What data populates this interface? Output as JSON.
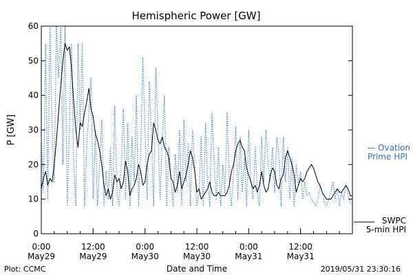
{
  "chart_data": {
    "type": "line",
    "title": "Hemispheric Power [GW]",
    "xlabel": "Date and Time",
    "ylabel": "P [GW]",
    "ylim": [
      0,
      60
    ],
    "yticks": [
      0,
      10,
      20,
      30,
      40,
      50,
      60
    ],
    "xlim_hours": [
      0,
      72
    ],
    "xticks": [
      {
        "hour": 0,
        "time": "0:00",
        "date": "May29"
      },
      {
        "hour": 12,
        "time": "12:00",
        "date": "May29"
      },
      {
        "hour": 24,
        "time": "0:00",
        "date": "May30"
      },
      {
        "hour": 36,
        "time": "12:00",
        "date": "May30"
      },
      {
        "hour": 48,
        "time": "0:00",
        "date": "May31"
      },
      {
        "hour": 60,
        "time": "12:00",
        "date": "May31"
      }
    ],
    "grid": false,
    "legend_placement": "right",
    "series": [
      {
        "name": "SWPC 5-min HPI",
        "legend_lines": [
          "SWPC",
          "5-min HPI"
        ],
        "color": "#000000",
        "style": "solid",
        "x": [
          0,
          0.5,
          1,
          1.5,
          2,
          2.5,
          3,
          3.5,
          4,
          4.5,
          5,
          5.5,
          6,
          6.5,
          7,
          7.5,
          8,
          8.5,
          9,
          9.5,
          10,
          10.5,
          11,
          11.5,
          12,
          12.5,
          13,
          13.5,
          14,
          14.5,
          15,
          15.5,
          16,
          16.5,
          17,
          17.5,
          18,
          18.5,
          19,
          19.5,
          20,
          20.5,
          21,
          21.5,
          22,
          22.5,
          23,
          23.5,
          24,
          24.5,
          25,
          25.5,
          26,
          26.5,
          27,
          27.5,
          28,
          28.5,
          29,
          29.5,
          30,
          30.5,
          31,
          31.5,
          32,
          32.5,
          33,
          33.5,
          34,
          34.5,
          35,
          35.5,
          36,
          36.5,
          37,
          37.5,
          38,
          38.5,
          39,
          39.5,
          40,
          40.5,
          41,
          41.5,
          42,
          42.5,
          43,
          43.5,
          44,
          44.5,
          45,
          45.5,
          46,
          46.5,
          47,
          47.5,
          48,
          48.5,
          49,
          49.5,
          50,
          50.5,
          51,
          51.5,
          52,
          52.5,
          53,
          53.5,
          54,
          54.5,
          55,
          55.5,
          56,
          56.5,
          57,
          57.5,
          58,
          58.5,
          59,
          59.5,
          60,
          60.5,
          61,
          61.5,
          62,
          62.5,
          63,
          63.5,
          64,
          64.5,
          65,
          65.5,
          66,
          66.5,
          67,
          67.5,
          68,
          68.5,
          69,
          69.5,
          70,
          70.5,
          71,
          71.5,
          72
        ],
        "values": [
          13,
          16,
          18,
          14,
          16,
          15,
          20,
          27,
          35,
          43,
          50,
          55,
          53,
          54,
          48,
          38,
          30,
          25,
          32,
          31,
          35,
          38,
          42,
          36,
          34,
          29,
          27,
          24,
          20,
          14,
          11,
          13,
          10,
          12,
          17,
          15,
          16,
          13,
          15,
          21,
          18,
          11,
          13,
          14,
          16,
          20,
          18,
          14,
          15,
          20,
          23,
          24,
          32,
          30,
          27,
          26,
          28,
          25,
          24,
          22,
          16,
          15,
          12,
          14,
          18,
          13,
          15,
          17,
          20,
          24,
          22,
          18,
          12,
          13,
          10,
          11,
          12,
          13,
          15,
          12,
          11,
          11,
          12,
          11,
          11,
          11,
          12,
          14,
          18,
          20,
          24,
          26,
          27,
          25,
          24,
          19,
          17,
          15,
          13,
          14,
          12,
          14,
          18,
          14,
          12,
          13,
          17,
          19,
          18,
          14,
          13,
          16,
          17,
          22,
          24,
          22,
          20,
          17,
          12,
          14,
          16,
          15,
          16,
          18,
          19,
          20,
          19,
          17,
          15,
          14,
          12,
          11,
          10,
          10,
          10,
          11,
          12,
          13,
          12,
          12,
          13,
          14,
          13,
          11,
          11
        ]
      },
      {
        "name": "Ovation Prime HPI",
        "legend_lines": [
          "— Ovation",
          "Prime HPI"
        ],
        "color": "#2e6fd0",
        "style": "dotted",
        "x": [
          0,
          0.5,
          1,
          1.5,
          2,
          2.5,
          3,
          3.5,
          4,
          4.5,
          5,
          5.5,
          6,
          6.5,
          7,
          7.5,
          8,
          8.5,
          9,
          9.5,
          10,
          10.5,
          11,
          11.5,
          12,
          12.5,
          13,
          13.5,
          14,
          14.5,
          15,
          15.5,
          16,
          16.5,
          17,
          17.5,
          18,
          18.5,
          19,
          19.5,
          20,
          20.5,
          21,
          21.5,
          22,
          22.5,
          23,
          23.5,
          24,
          24.5,
          25,
          25.5,
          26,
          26.5,
          27,
          27.5,
          28,
          28.5,
          29,
          29.5,
          30,
          30.5,
          31,
          31.5,
          32,
          32.5,
          33,
          33.5,
          34,
          34.5,
          35,
          35.5,
          36,
          36.5,
          37,
          37.5,
          38,
          38.5,
          39,
          39.5,
          40,
          40.5,
          41,
          41.5,
          42,
          42.5,
          43,
          43.5,
          44,
          44.5,
          45,
          45.5,
          46,
          46.5,
          47,
          47.5,
          48,
          48.5,
          49,
          49.5,
          50,
          50.5,
          51,
          51.5,
          52,
          52.5,
          53,
          53.5,
          54,
          54.5,
          55,
          55.5,
          56,
          56.5,
          57,
          57.5,
          58,
          58.5,
          59,
          59.5,
          60,
          60.5,
          61,
          61.5,
          62,
          62.5,
          63,
          63.5,
          64,
          64.5,
          65,
          65.5,
          66,
          66.5,
          67,
          67.5,
          68,
          68.5,
          69,
          69.5,
          70,
          70.5,
          71,
          71.5,
          72
        ],
        "values": [
          28,
          12,
          55,
          10,
          60,
          30,
          15,
          60,
          45,
          60,
          20,
          60,
          8,
          30,
          55,
          20,
          8,
          55,
          30,
          55,
          8,
          25,
          35,
          45,
          10,
          30,
          8,
          20,
          33,
          8,
          18,
          10,
          25,
          8,
          37,
          12,
          8,
          20,
          36,
          10,
          32,
          8,
          28,
          15,
          40,
          8,
          23,
          51,
          30,
          10,
          44,
          28,
          8,
          48,
          30,
          10,
          28,
          40,
          8,
          25,
          17,
          8,
          23,
          12,
          30,
          8,
          33,
          15,
          26,
          8,
          30,
          20,
          8,
          12,
          28,
          8,
          32,
          15,
          8,
          35,
          20,
          10,
          25,
          8,
          20,
          12,
          35,
          15,
          8,
          18,
          31,
          10,
          28,
          12,
          22,
          8,
          30,
          15,
          10,
          25,
          12,
          8,
          28,
          15,
          30,
          20,
          15,
          25,
          12,
          28,
          22,
          8,
          28,
          15,
          25,
          10,
          22,
          8,
          20,
          14,
          18,
          10,
          15,
          11,
          12,
          10,
          9,
          8,
          10,
          14,
          12,
          9,
          8,
          10,
          12,
          15,
          10,
          13,
          8,
          12,
          10,
          14,
          11,
          9,
          8
        ]
      }
    ]
  },
  "footer": {
    "left": "Plot: CCMC",
    "right": "2019/05/31 23:30:16"
  }
}
